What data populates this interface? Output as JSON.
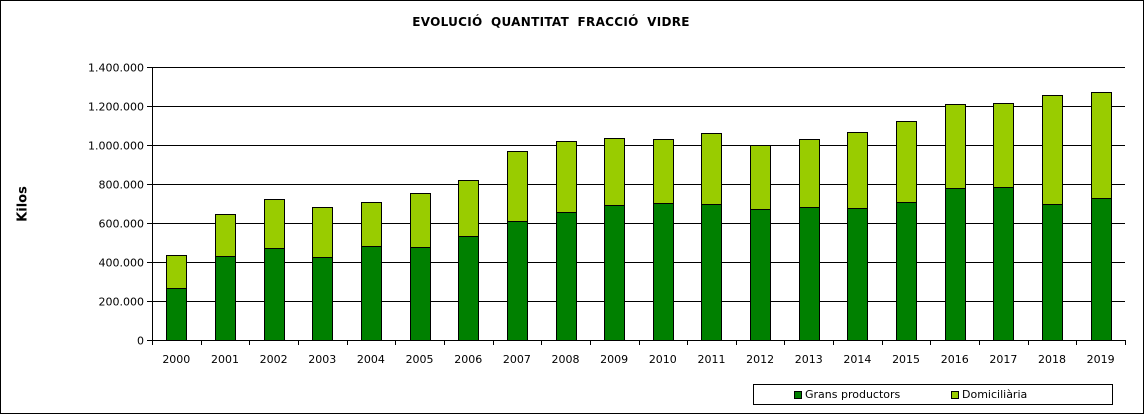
{
  "chart_data": {
    "type": "bar",
    "stacked": true,
    "title": "EVOLUCIÓ  QUANTITAT  FRACCIÓ  VIDRE",
    "ylabel": "Kilos",
    "xlabel": "",
    "ylim": [
      0,
      1400000
    ],
    "yticks": [
      0,
      200000,
      400000,
      600000,
      800000,
      1000000,
      1200000,
      1400000
    ],
    "ytick_labels": [
      "0",
      "200.000",
      "400.000",
      "600.000",
      "800.000",
      "1.000.000",
      "1.200.000",
      "1.400.000"
    ],
    "grid": true,
    "legend_position": "bottom-right",
    "categories": [
      "2000",
      "2001",
      "2002",
      "2003",
      "2004",
      "2005",
      "2006",
      "2007",
      "2008",
      "2009",
      "2010",
      "2011",
      "2012",
      "2013",
      "2014",
      "2015",
      "2016",
      "2017",
      "2018",
      "2019"
    ],
    "series": [
      {
        "name": "Grans productors",
        "color": "#008000",
        "values": [
          265000,
          430000,
          470000,
          425000,
          480000,
          475000,
          535000,
          610000,
          655000,
          690000,
          705000,
          700000,
          670000,
          680000,
          675000,
          710000,
          780000,
          785000,
          700000,
          730000
        ]
      },
      {
        "name": "Domiciliària",
        "color": "#99cc00",
        "values": [
          170000,
          215000,
          255000,
          255000,
          230000,
          280000,
          285000,
          360000,
          365000,
          345000,
          325000,
          360000,
          330000,
          350000,
          390000,
          415000,
          430000,
          430000,
          555000,
          540000
        ]
      }
    ]
  }
}
